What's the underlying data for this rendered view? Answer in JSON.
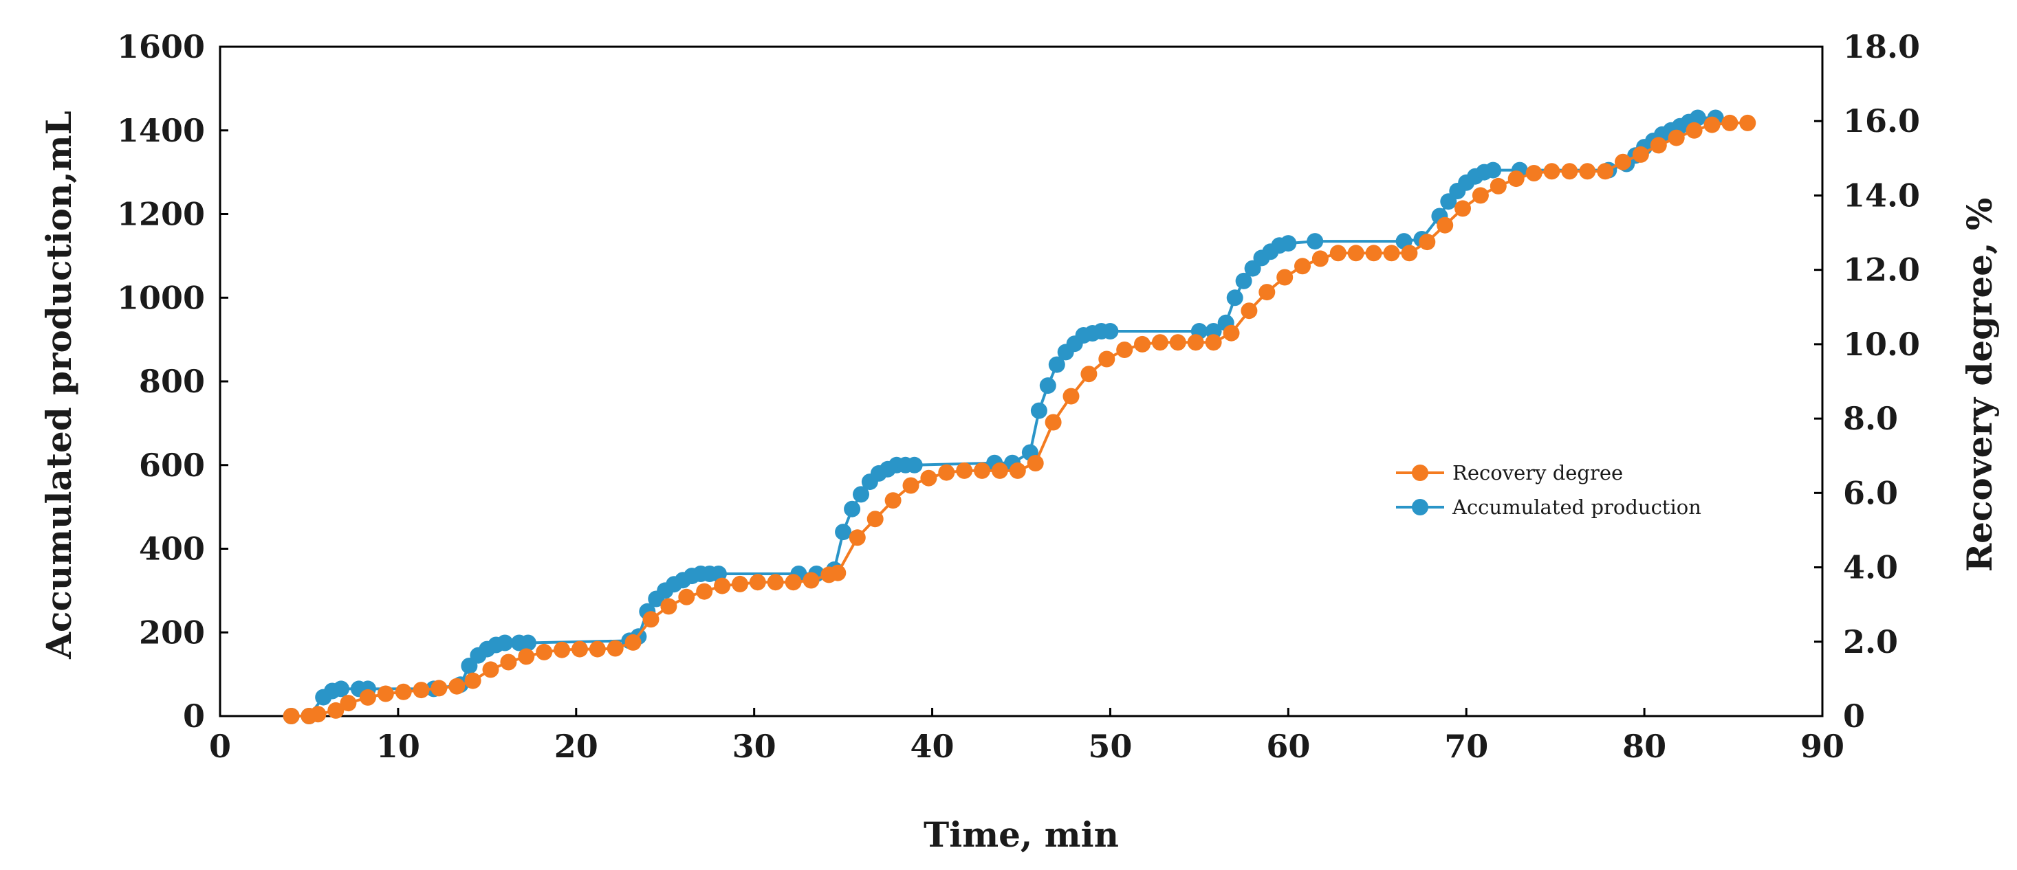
{
  "chart_data": {
    "type": "line",
    "title": "",
    "xlabel": "Time, min",
    "ylabel_left": "Accumulated production,mL",
    "ylabel_right": "Recovery degree, %",
    "xlim": [
      0,
      90
    ],
    "ylim_left": [
      0,
      1600
    ],
    "ylim_right": [
      0,
      18
    ],
    "x_ticks": [
      "0",
      "10",
      "20",
      "30",
      "40",
      "50",
      "60",
      "70",
      "80",
      "90"
    ],
    "y_left_ticks": [
      "0",
      "200",
      "400",
      "600",
      "800",
      "1000",
      "1200",
      "1400",
      "1600"
    ],
    "y_right_ticks": [
      "0",
      "2.0",
      "4.0",
      "6.0",
      "8.0",
      "10.0",
      "12.0",
      "14.0",
      "16.0",
      "18.0"
    ],
    "grid": false,
    "legend_position": "right-middle",
    "series": [
      {
        "name": "Recovery degree",
        "axis": "right",
        "color": "#F47B20",
        "points": [
          [
            4.0,
            0.0
          ],
          [
            5.0,
            0.0
          ],
          [
            5.5,
            0.05
          ],
          [
            6.5,
            0.15
          ],
          [
            7.2,
            0.35
          ],
          [
            8.3,
            0.5
          ],
          [
            9.3,
            0.6
          ],
          [
            10.3,
            0.65
          ],
          [
            11.3,
            0.7
          ],
          [
            12.3,
            0.75
          ],
          [
            13.3,
            0.8
          ],
          [
            14.2,
            0.95
          ],
          [
            15.2,
            1.25
          ],
          [
            16.2,
            1.45
          ],
          [
            17.2,
            1.6
          ],
          [
            18.2,
            1.72
          ],
          [
            19.2,
            1.78
          ],
          [
            20.2,
            1.8
          ],
          [
            21.2,
            1.8
          ],
          [
            22.2,
            1.82
          ],
          [
            23.2,
            1.98
          ],
          [
            24.2,
            2.6
          ],
          [
            25.2,
            2.95
          ],
          [
            26.2,
            3.2
          ],
          [
            27.2,
            3.35
          ],
          [
            28.2,
            3.5
          ],
          [
            29.2,
            3.55
          ],
          [
            30.2,
            3.6
          ],
          [
            31.2,
            3.6
          ],
          [
            32.2,
            3.6
          ],
          [
            33.2,
            3.65
          ],
          [
            34.2,
            3.8
          ],
          [
            34.7,
            3.85
          ],
          [
            35.8,
            4.8
          ],
          [
            36.8,
            5.3
          ],
          [
            37.8,
            5.8
          ],
          [
            38.8,
            6.2
          ],
          [
            39.8,
            6.4
          ],
          [
            40.8,
            6.55
          ],
          [
            41.8,
            6.6
          ],
          [
            42.8,
            6.6
          ],
          [
            43.8,
            6.6
          ],
          [
            44.8,
            6.6
          ],
          [
            45.8,
            6.8
          ],
          [
            46.8,
            7.9
          ],
          [
            47.8,
            8.6
          ],
          [
            48.8,
            9.2
          ],
          [
            49.8,
            9.6
          ],
          [
            50.8,
            9.85
          ],
          [
            51.8,
            10.0
          ],
          [
            52.8,
            10.05
          ],
          [
            53.8,
            10.05
          ],
          [
            54.8,
            10.05
          ],
          [
            55.8,
            10.05
          ],
          [
            56.8,
            10.3
          ],
          [
            57.8,
            10.9
          ],
          [
            58.8,
            11.4
          ],
          [
            59.8,
            11.8
          ],
          [
            60.8,
            12.1
          ],
          [
            61.8,
            12.3
          ],
          [
            62.8,
            12.45
          ],
          [
            63.8,
            12.45
          ],
          [
            64.8,
            12.45
          ],
          [
            65.8,
            12.45
          ],
          [
            66.8,
            12.45
          ],
          [
            67.8,
            12.75
          ],
          [
            68.8,
            13.2
          ],
          [
            69.8,
            13.65
          ],
          [
            70.8,
            14.0
          ],
          [
            71.8,
            14.25
          ],
          [
            72.8,
            14.45
          ],
          [
            73.8,
            14.6
          ],
          [
            74.8,
            14.65
          ],
          [
            75.8,
            14.65
          ],
          [
            76.8,
            14.65
          ],
          [
            77.8,
            14.65
          ],
          [
            78.8,
            14.9
          ],
          [
            79.8,
            15.1
          ],
          [
            80.8,
            15.35
          ],
          [
            81.8,
            15.55
          ],
          [
            82.8,
            15.75
          ],
          [
            83.8,
            15.9
          ],
          [
            84.8,
            15.95
          ],
          [
            85.8,
            15.95
          ]
        ]
      },
      {
        "name": "Accumulated production",
        "axis": "left",
        "color": "#2A95C8",
        "points": [
          [
            4.0,
            0
          ],
          [
            5.0,
            0
          ],
          [
            5.8,
            45
          ],
          [
            6.3,
            60
          ],
          [
            6.8,
            65
          ],
          [
            7.8,
            65
          ],
          [
            8.3,
            65
          ],
          [
            12.0,
            65
          ],
          [
            13.5,
            75
          ],
          [
            14.0,
            120
          ],
          [
            14.5,
            145
          ],
          [
            15.0,
            160
          ],
          [
            15.5,
            170
          ],
          [
            16.0,
            175
          ],
          [
            16.8,
            175
          ],
          [
            17.3,
            175
          ],
          [
            23.0,
            180
          ],
          [
            23.5,
            190
          ],
          [
            24.0,
            250
          ],
          [
            24.5,
            280
          ],
          [
            25.0,
            300
          ],
          [
            25.5,
            315
          ],
          [
            26.0,
            325
          ],
          [
            26.5,
            335
          ],
          [
            27.0,
            340
          ],
          [
            27.5,
            340
          ],
          [
            28.0,
            340
          ],
          [
            32.5,
            340
          ],
          [
            33.5,
            340
          ],
          [
            34.5,
            350
          ],
          [
            35.0,
            440
          ],
          [
            35.5,
            495
          ],
          [
            36.0,
            530
          ],
          [
            36.5,
            560
          ],
          [
            37.0,
            580
          ],
          [
            37.5,
            590
          ],
          [
            38.0,
            600
          ],
          [
            38.5,
            600
          ],
          [
            39.0,
            600
          ],
          [
            43.5,
            605
          ],
          [
            44.5,
            605
          ],
          [
            45.5,
            630
          ],
          [
            46.0,
            730
          ],
          [
            46.5,
            790
          ],
          [
            47.0,
            840
          ],
          [
            47.5,
            870
          ],
          [
            48.0,
            890
          ],
          [
            48.5,
            910
          ],
          [
            49.0,
            915
          ],
          [
            49.5,
            920
          ],
          [
            50.0,
            920
          ],
          [
            55.0,
            920
          ],
          [
            55.8,
            920
          ],
          [
            56.5,
            940
          ],
          [
            57.0,
            1000
          ],
          [
            57.5,
            1040
          ],
          [
            58.0,
            1070
          ],
          [
            58.5,
            1095
          ],
          [
            59.0,
            1110
          ],
          [
            59.5,
            1125
          ],
          [
            60.0,
            1130
          ],
          [
            61.5,
            1135
          ],
          [
            66.5,
            1135
          ],
          [
            67.5,
            1140
          ],
          [
            68.5,
            1195
          ],
          [
            69.0,
            1230
          ],
          [
            69.5,
            1255
          ],
          [
            70.0,
            1275
          ],
          [
            70.5,
            1290
          ],
          [
            71.0,
            1300
          ],
          [
            71.5,
            1305
          ],
          [
            73.0,
            1305
          ],
          [
            78.0,
            1305
          ],
          [
            79.0,
            1320
          ],
          [
            79.5,
            1340
          ],
          [
            80.0,
            1360
          ],
          [
            80.5,
            1375
          ],
          [
            81.0,
            1390
          ],
          [
            81.5,
            1400
          ],
          [
            82.0,
            1410
          ],
          [
            82.5,
            1420
          ],
          [
            83.0,
            1430
          ],
          [
            84.0,
            1430
          ]
        ]
      }
    ]
  }
}
